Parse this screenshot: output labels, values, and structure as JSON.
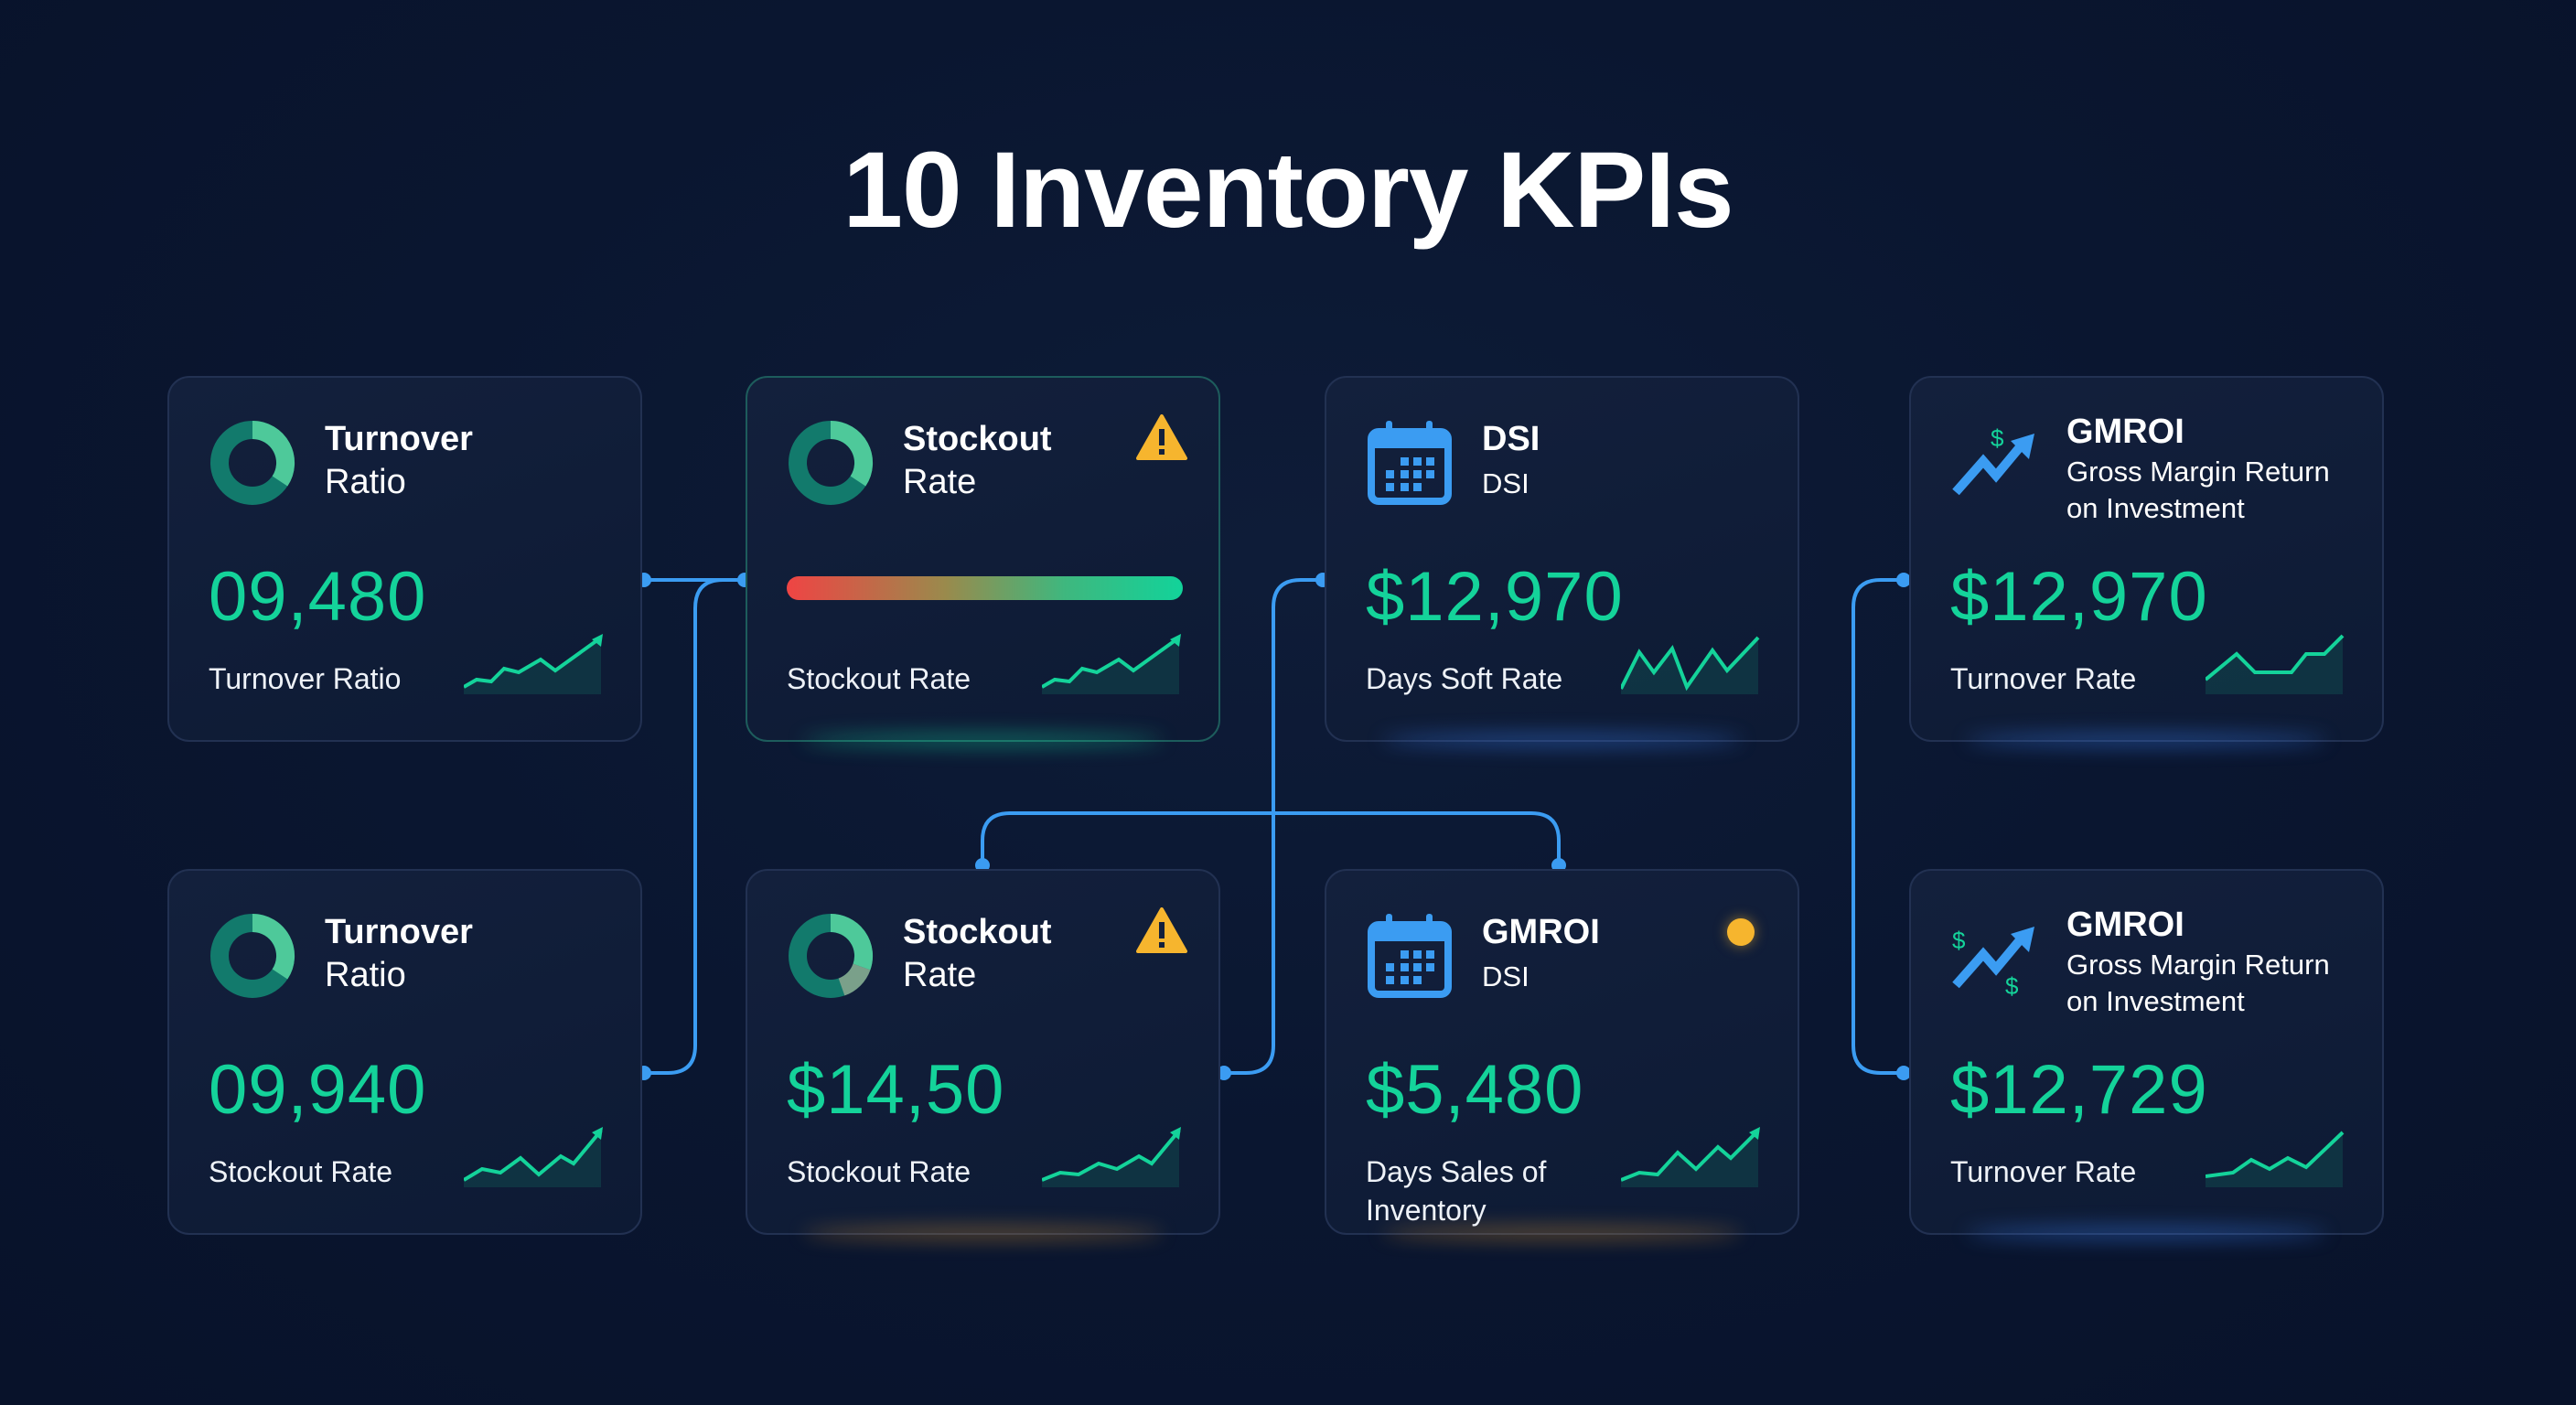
{
  "title": "10 Inventory KPIs",
  "colors": {
    "accent": "#14d39a",
    "connector": "#3b9cf2",
    "warning": "#f6b52e",
    "background": "#0a1630"
  },
  "cards": [
    {
      "icon": "donut-chart-icon",
      "title": "Turnover",
      "subtitle": "Ratio",
      "value": "09,480",
      "label": "Turnover Ratio"
    },
    {
      "icon": "donut-chart-icon",
      "title": "Stockout",
      "subtitle": "Rate",
      "badge": "warning-icon",
      "progress_gradient": "red-to-green",
      "label": "Stockout Rate"
    },
    {
      "icon": "calendar-icon",
      "title": "DSI",
      "subtitle": "DSI",
      "value": "$12,970",
      "label": "Days Soft Rate"
    },
    {
      "icon": "trend-up-dollar-icon",
      "title": "GMROI",
      "subtitle": "Gross Margin Return on Investment",
      "value": "$12,970",
      "label": "Turnover Rate"
    },
    {
      "icon": "donut-chart-icon",
      "title": "Turnover",
      "subtitle": "Ratio",
      "value": "09,940",
      "label": "Stockout Rate"
    },
    {
      "icon": "donut-chart-icon",
      "title": "Stockout",
      "subtitle": "Rate",
      "badge": "warning-icon",
      "value": "$14,50",
      "label": "Stockout Rate"
    },
    {
      "icon": "calendar-icon",
      "title": "GMROI",
      "subtitle": "DSI",
      "badge": "status-dot",
      "value": "$5,480",
      "label": "Days Sales of Inventory"
    },
    {
      "icon": "trend-up-dollar-icon",
      "title": "GMROI",
      "subtitle": "Gross Margin Return on Investment",
      "value": "$12,729",
      "label": "Turnover Rate"
    }
  ]
}
